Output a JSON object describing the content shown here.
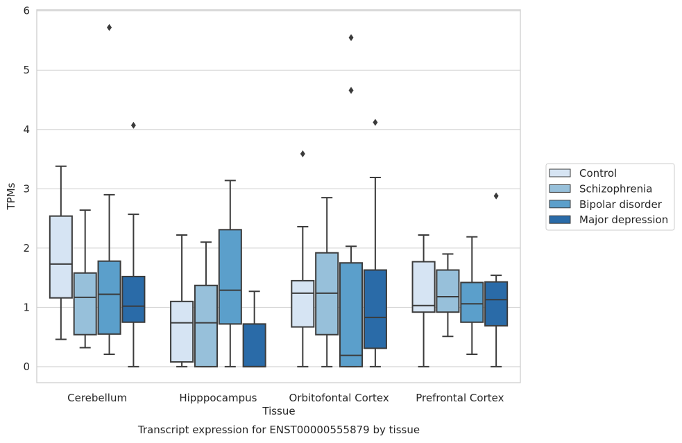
{
  "caption": "Transcript expression for ENST00000555879 by tissue",
  "chart_data": {
    "type": "box",
    "xlabel": "Tissue",
    "ylabel": "TPMs",
    "ylim": [
      -0.27,
      6.02
    ],
    "yticks": [
      0,
      1,
      2,
      3,
      4,
      5,
      6
    ],
    "grid": true,
    "legend_position": "outside-right",
    "categories": [
      "Cerebellum",
      "Hipppocampus",
      "Orbitofontal Cortex",
      "Prefrontal Cortex"
    ],
    "series": [
      {
        "name": "Control",
        "color": "#d6e4f3",
        "boxes": [
          {
            "whisker_low": 0.46,
            "q1": 1.16,
            "median": 1.73,
            "q3": 2.54,
            "whisker_high": 3.38,
            "outliers": []
          },
          {
            "whisker_low": 0.0,
            "q1": 0.08,
            "median": 0.74,
            "q3": 1.1,
            "whisker_high": 2.22,
            "outliers": []
          },
          {
            "whisker_low": 0.0,
            "q1": 0.67,
            "median": 1.24,
            "q3": 1.45,
            "whisker_high": 2.36,
            "outliers": [
              3.59
            ]
          },
          {
            "whisker_low": 0.0,
            "q1": 0.92,
            "median": 1.03,
            "q3": 1.77,
            "whisker_high": 2.22,
            "outliers": []
          }
        ]
      },
      {
        "name": "Schizophrenia",
        "color": "#97c0da",
        "boxes": [
          {
            "whisker_low": 0.32,
            "q1": 0.54,
            "median": 1.17,
            "q3": 1.58,
            "whisker_high": 2.64,
            "outliers": []
          },
          {
            "whisker_low": 0.0,
            "q1": 0.0,
            "median": 0.74,
            "q3": 1.37,
            "whisker_high": 2.1,
            "outliers": []
          },
          {
            "whisker_low": 0.0,
            "q1": 0.54,
            "median": 1.24,
            "q3": 1.92,
            "whisker_high": 2.85,
            "outliers": []
          },
          {
            "whisker_low": 0.51,
            "q1": 0.92,
            "median": 1.18,
            "q3": 1.63,
            "whisker_high": 1.9,
            "outliers": []
          }
        ]
      },
      {
        "name": "Bipolar disorder",
        "color": "#5b9fcb",
        "boxes": [
          {
            "whisker_low": 0.21,
            "q1": 0.55,
            "median": 1.22,
            "q3": 1.78,
            "whisker_high": 2.9,
            "outliers": [
              5.72
            ]
          },
          {
            "whisker_low": 0.0,
            "q1": 0.72,
            "median": 1.29,
            "q3": 2.31,
            "whisker_high": 3.14,
            "outliers": []
          },
          {
            "whisker_low": 0.0,
            "q1": 0.0,
            "median": 0.19,
            "q3": 1.75,
            "whisker_high": 2.03,
            "outliers": [
              5.55,
              4.66
            ]
          },
          {
            "whisker_low": 0.21,
            "q1": 0.75,
            "median": 1.06,
            "q3": 1.42,
            "whisker_high": 2.19,
            "outliers": []
          }
        ]
      },
      {
        "name": "Major depression",
        "color": "#2a6ba8",
        "boxes": [
          {
            "whisker_low": 0.0,
            "q1": 0.75,
            "median": 1.02,
            "q3": 1.52,
            "whisker_high": 2.57,
            "outliers": [
              4.07
            ]
          },
          {
            "whisker_low": 0.0,
            "q1": 0.0,
            "median": 0.0,
            "q3": 0.72,
            "whisker_high": 1.27,
            "outliers": []
          },
          {
            "whisker_low": 0.0,
            "q1": 0.31,
            "median": 0.83,
            "q3": 1.63,
            "whisker_high": 3.19,
            "outliers": [
              4.12
            ]
          },
          {
            "whisker_low": 0.0,
            "q1": 0.69,
            "median": 1.13,
            "q3": 1.43,
            "whisker_high": 1.54,
            "outliers": [
              2.88
            ]
          }
        ]
      }
    ]
  }
}
